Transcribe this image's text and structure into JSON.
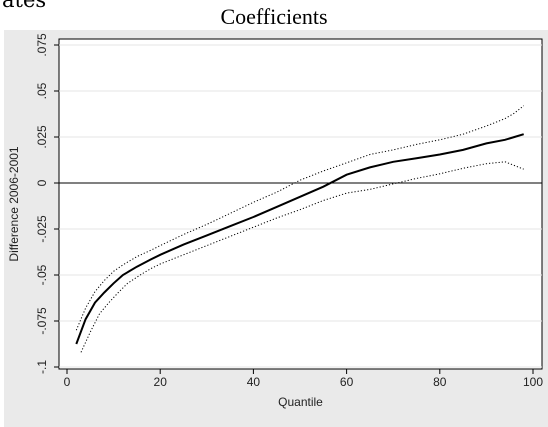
{
  "top_fragment": "ates",
  "chart_data": {
    "type": "line",
    "title": "Coefficients",
    "xlabel": "Quantile",
    "ylabel": "Difference 2006-2001",
    "xlim": [
      0,
      100
    ],
    "ylim": [
      -0.1,
      0.075
    ],
    "xticks": [
      0,
      20,
      40,
      60,
      80,
      100
    ],
    "yticks": [
      -0.1,
      -0.075,
      -0.05,
      -0.025,
      0,
      0.025,
      0.05,
      0.075
    ],
    "ytick_labels": [
      "-.1",
      "-.075",
      "-.05",
      "-.025",
      "0",
      ".025",
      ".05",
      ".075"
    ],
    "xtick_labels": [
      "0",
      "20",
      "40",
      "60",
      "80",
      "100"
    ],
    "grid": "horizontal",
    "reference_line": 0,
    "series": [
      {
        "style": "solid",
        "x": [
          2,
          4,
          6,
          8,
          10,
          12,
          15,
          18,
          20,
          25,
          30,
          35,
          40,
          45,
          50,
          55,
          60,
          65,
          70,
          75,
          80,
          85,
          90,
          94,
          96,
          98
        ],
        "y": [
          -0.0875,
          -0.074,
          -0.065,
          -0.0595,
          -0.0545,
          -0.05,
          -0.0455,
          -0.0415,
          -0.039,
          -0.0335,
          -0.0285,
          -0.0235,
          -0.0185,
          -0.013,
          -0.0075,
          -0.002,
          0.0045,
          0.0085,
          0.0115,
          0.0135,
          0.0155,
          0.018,
          0.0215,
          0.0235,
          0.025,
          0.0265
        ]
      },
      {
        "style": "dotted",
        "x": [
          2,
          4,
          6,
          8,
          10,
          12,
          15,
          18,
          20,
          25,
          30,
          35,
          40,
          45,
          50,
          55,
          60,
          65,
          70,
          75,
          80,
          85,
          90,
          94,
          96,
          98
        ],
        "y": [
          -0.08,
          -0.068,
          -0.059,
          -0.053,
          -0.048,
          -0.0445,
          -0.04,
          -0.0365,
          -0.034,
          -0.028,
          -0.0225,
          -0.0165,
          -0.0105,
          -0.005,
          0.0015,
          0.0065,
          0.011,
          0.0155,
          0.018,
          0.021,
          0.0235,
          0.0265,
          0.031,
          0.035,
          0.038,
          0.042
        ]
      },
      {
        "style": "dotted",
        "x": [
          3,
          5,
          7,
          9,
          11,
          13,
          16,
          18,
          20,
          25,
          30,
          35,
          40,
          45,
          50,
          55,
          60,
          65,
          70,
          75,
          80,
          85,
          90,
          94,
          96,
          98
        ],
        "y": [
          -0.092,
          -0.081,
          -0.071,
          -0.065,
          -0.0595,
          -0.0545,
          -0.0495,
          -0.0465,
          -0.044,
          -0.039,
          -0.034,
          -0.029,
          -0.024,
          -0.019,
          -0.0145,
          -0.0095,
          -0.0055,
          -0.0035,
          -0.0005,
          0.0025,
          0.005,
          0.008,
          0.0105,
          0.0115,
          0.0095,
          0.0075
        ]
      }
    ]
  }
}
